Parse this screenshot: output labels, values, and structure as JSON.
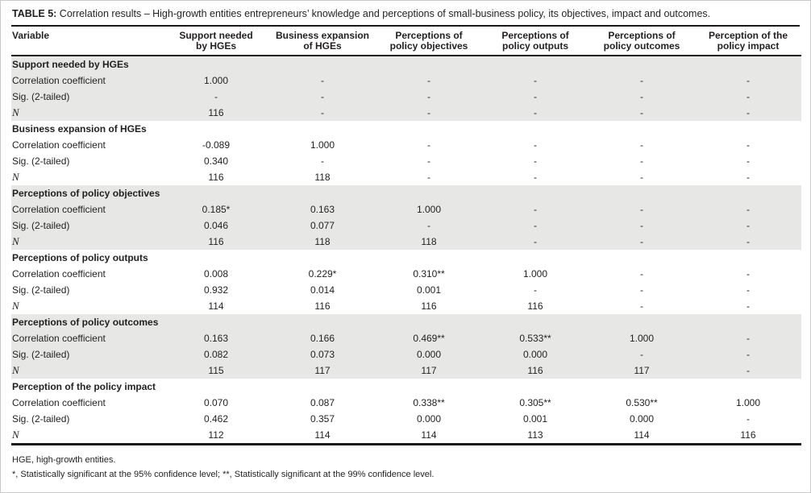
{
  "title": {
    "label": "TABLE 5:",
    "caption": " Correlation results – High-growth entities entrepreneurs’ knowledge and perceptions of small-business policy, its objectives, impact and outcomes."
  },
  "table": {
    "header": {
      "variable": "Variable",
      "cols": [
        {
          "line1": "Support needed",
          "line2": "by HGEs"
        },
        {
          "line1": "Business expansion",
          "line2": "of HGEs"
        },
        {
          "line1": "Perceptions of",
          "line2": "policy objectives"
        },
        {
          "line1": "Perceptions of",
          "line2": "policy outputs"
        },
        {
          "line1": "Perceptions of",
          "line2": "policy outcomes"
        },
        {
          "line1": "Perception of the",
          "line2": "policy impact"
        }
      ]
    },
    "row_labels": {
      "correlation": "Correlation coefficient",
      "sig": "Sig. (2-tailed)",
      "n": "N"
    },
    "sections": [
      {
        "name": "Support needed by HGEs",
        "shaded": true,
        "rows": [
          {
            "label": "Correlation coefficient",
            "italic": false,
            "values": [
              "1.000",
              "-",
              "-",
              "-",
              "-",
              "-"
            ]
          },
          {
            "label": "Sig. (2-tailed)",
            "italic": false,
            "values": [
              "-",
              "-",
              "-",
              "-",
              "-",
              "-"
            ]
          },
          {
            "label": "N",
            "italic": true,
            "values": [
              "116",
              "-",
              "-",
              "-",
              "-",
              "-"
            ]
          }
        ]
      },
      {
        "name": "Business expansion of HGEs",
        "shaded": false,
        "rows": [
          {
            "label": "Correlation coefficient",
            "italic": false,
            "values": [
              "-0.089",
              "1.000",
              "-",
              "-",
              "-",
              "-"
            ]
          },
          {
            "label": "Sig. (2-tailed)",
            "italic": false,
            "values": [
              "0.340",
              "-",
              "-",
              "-",
              "-",
              "-"
            ]
          },
          {
            "label": "N",
            "italic": true,
            "values": [
              "116",
              "118",
              "-",
              "-",
              "-",
              "-"
            ]
          }
        ]
      },
      {
        "name": "Perceptions of policy objectives",
        "shaded": true,
        "rows": [
          {
            "label": "Correlation coefficient",
            "italic": false,
            "values": [
              "0.185*",
              "0.163",
              "1.000",
              "-",
              "-",
              "-"
            ]
          },
          {
            "label": "Sig. (2-tailed)",
            "italic": false,
            "values": [
              "0.046",
              "0.077",
              "-",
              "-",
              "-",
              "-"
            ]
          },
          {
            "label": "N",
            "italic": true,
            "values": [
              "116",
              "118",
              "118",
              "-",
              "-",
              "-"
            ]
          }
        ]
      },
      {
        "name": "Perceptions of policy outputs",
        "shaded": false,
        "rows": [
          {
            "label": "Correlation coefficient",
            "italic": false,
            "values": [
              "0.008",
              "0.229*",
              "0.310**",
              "1.000",
              "-",
              "-"
            ]
          },
          {
            "label": "Sig. (2-tailed)",
            "italic": false,
            "values": [
              "0.932",
              "0.014",
              "0.001",
              "-",
              "-",
              "-"
            ]
          },
          {
            "label": "N",
            "italic": true,
            "values": [
              "114",
              "116",
              "116",
              "116",
              "-",
              "-"
            ]
          }
        ]
      },
      {
        "name": "Perceptions of policy outcomes",
        "shaded": true,
        "rows": [
          {
            "label": "Correlation coefficient",
            "italic": false,
            "values": [
              "0.163",
              "0.166",
              "0.469**",
              "0.533**",
              "1.000",
              "-"
            ]
          },
          {
            "label": "Sig. (2-tailed)",
            "italic": false,
            "values": [
              "0.082",
              "0.073",
              "0.000",
              "0.000",
              "-",
              "-"
            ]
          },
          {
            "label": "N",
            "italic": true,
            "values": [
              "115",
              "117",
              "117",
              "116",
              "117",
              "-"
            ]
          }
        ]
      },
      {
        "name": "Perception of the policy impact",
        "shaded": false,
        "rows": [
          {
            "label": "Correlation coefficient",
            "italic": false,
            "values": [
              "0.070",
              "0.087",
              "0.338**",
              "0.305**",
              "0.530**",
              "1.000"
            ]
          },
          {
            "label": "Sig. (2-tailed)",
            "italic": false,
            "values": [
              "0.462",
              "0.357",
              "0.000",
              "0.001",
              "0.000",
              "-"
            ]
          },
          {
            "label": "N",
            "italic": true,
            "values": [
              "112",
              "114",
              "114",
              "113",
              "114",
              "116"
            ]
          }
        ]
      }
    ]
  },
  "footnotes": [
    "HGE, high-growth entities.",
    "*, Statistically significant at the 95% confidence level; **, Statistically significant at the 99% confidence level."
  ],
  "colors": {
    "text": "#231f20",
    "shaded_row": "#e7e7e5",
    "rule": "#181818"
  }
}
